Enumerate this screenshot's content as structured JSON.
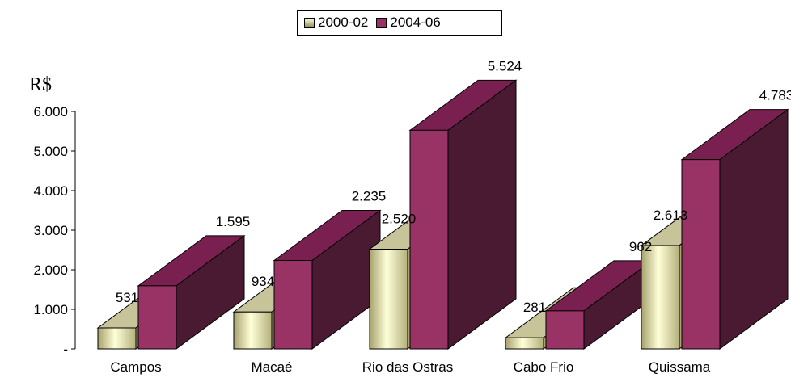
{
  "chart_data": {
    "type": "bar",
    "title": "",
    "ylabel": "R$",
    "xlabel": "",
    "ylim": [
      0,
      6000
    ],
    "yticks": [
      {
        "value": 0,
        "label": "-"
      },
      {
        "value": 1000,
        "label": "1.000"
      },
      {
        "value": 2000,
        "label": "2.000"
      },
      {
        "value": 3000,
        "label": "3.000"
      },
      {
        "value": 4000,
        "label": "4.000"
      },
      {
        "value": 5000,
        "label": "5.000"
      },
      {
        "value": 6000,
        "label": "6.000"
      }
    ],
    "categories": [
      "Campos",
      "Macaé",
      "Rio das Ostras",
      "Cabo Frio",
      "Quissama"
    ],
    "series": [
      {
        "name": "2000-02",
        "values": [
          531,
          934,
          2520,
          281,
          2613
        ],
        "labels": [
          "531",
          "934",
          "2.520",
          "281",
          "2.613"
        ]
      },
      {
        "name": "2004-06",
        "values": [
          1595,
          2235,
          5524,
          962,
          4783
        ],
        "labels": [
          "1.595",
          "2.235",
          "5.524",
          "962",
          "4.783"
        ]
      }
    ],
    "legend_position": "top",
    "grid": false,
    "colors": {
      "s1_front_light": "#ffffd8",
      "s1_front_dark": "#a8a470",
      "s1_top": "#c8c49a",
      "s2_front": "#993366",
      "s2_side": "#4a1a32",
      "s2_top": "#7a2050"
    }
  }
}
